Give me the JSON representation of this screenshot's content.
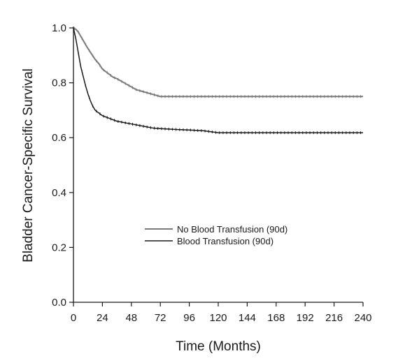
{
  "chart_data": {
    "type": "line",
    "title": "",
    "xlabel": "Time (Months)",
    "ylabel": "Bladder Cancer-Specific Survival",
    "xlim": [
      0,
      240
    ],
    "ylim": [
      0.0,
      1.0
    ],
    "x_ticks": [
      0,
      24,
      48,
      72,
      96,
      120,
      144,
      168,
      192,
      216,
      240
    ],
    "x_tick_labels": [
      "0",
      "24",
      "48",
      "72",
      "96",
      "120",
      "144",
      "168",
      "192",
      "216",
      "240"
    ],
    "y_ticks": [
      0.0,
      0.2,
      0.4,
      0.6,
      0.8,
      1.0
    ],
    "y_tick_labels": [
      "0.0",
      "0.2",
      "0.4",
      "0.6",
      "0.8",
      "1.0"
    ],
    "grid": false,
    "legend_placement": "center",
    "series": [
      {
        "name": "No Blood Transfusion (90d)",
        "color": "#7a7a7a",
        "points": [
          [
            0,
            1.0
          ],
          [
            2,
            0.995
          ],
          [
            4,
            0.985
          ],
          [
            6,
            0.97
          ],
          [
            8,
            0.955
          ],
          [
            10,
            0.94
          ],
          [
            12,
            0.925
          ],
          [
            15,
            0.905
          ],
          [
            18,
            0.885
          ],
          [
            21,
            0.87
          ],
          [
            24,
            0.85
          ],
          [
            27,
            0.84
          ],
          [
            30,
            0.83
          ],
          [
            33,
            0.82
          ],
          [
            36,
            0.815
          ],
          [
            40,
            0.805
          ],
          [
            44,
            0.795
          ],
          [
            48,
            0.785
          ],
          [
            52,
            0.775
          ],
          [
            56,
            0.77
          ],
          [
            60,
            0.765
          ],
          [
            64,
            0.76
          ],
          [
            68,
            0.755
          ],
          [
            72,
            0.75
          ],
          [
            80,
            0.75
          ],
          [
            120,
            0.75
          ],
          [
            160,
            0.75
          ],
          [
            200,
            0.75
          ],
          [
            240,
            0.75
          ]
        ]
      },
      {
        "name": "Blood Transfusion (90d)",
        "color": "#1a1a1a",
        "points": [
          [
            0,
            1.0
          ],
          [
            1,
            0.98
          ],
          [
            2,
            0.96
          ],
          [
            3,
            0.935
          ],
          [
            4,
            0.91
          ],
          [
            5,
            0.885
          ],
          [
            6,
            0.86
          ],
          [
            8,
            0.825
          ],
          [
            10,
            0.79
          ],
          [
            12,
            0.76
          ],
          [
            14,
            0.735
          ],
          [
            16,
            0.715
          ],
          [
            18,
            0.7
          ],
          [
            21,
            0.69
          ],
          [
            24,
            0.68
          ],
          [
            30,
            0.67
          ],
          [
            36,
            0.66
          ],
          [
            42,
            0.655
          ],
          [
            48,
            0.65
          ],
          [
            54,
            0.645
          ],
          [
            60,
            0.64
          ],
          [
            66,
            0.635
          ],
          [
            72,
            0.633
          ],
          [
            84,
            0.63
          ],
          [
            96,
            0.628
          ],
          [
            108,
            0.625
          ],
          [
            120,
            0.618
          ],
          [
            144,
            0.618
          ],
          [
            180,
            0.618
          ],
          [
            210,
            0.618
          ],
          [
            240,
            0.618
          ]
        ]
      }
    ]
  }
}
